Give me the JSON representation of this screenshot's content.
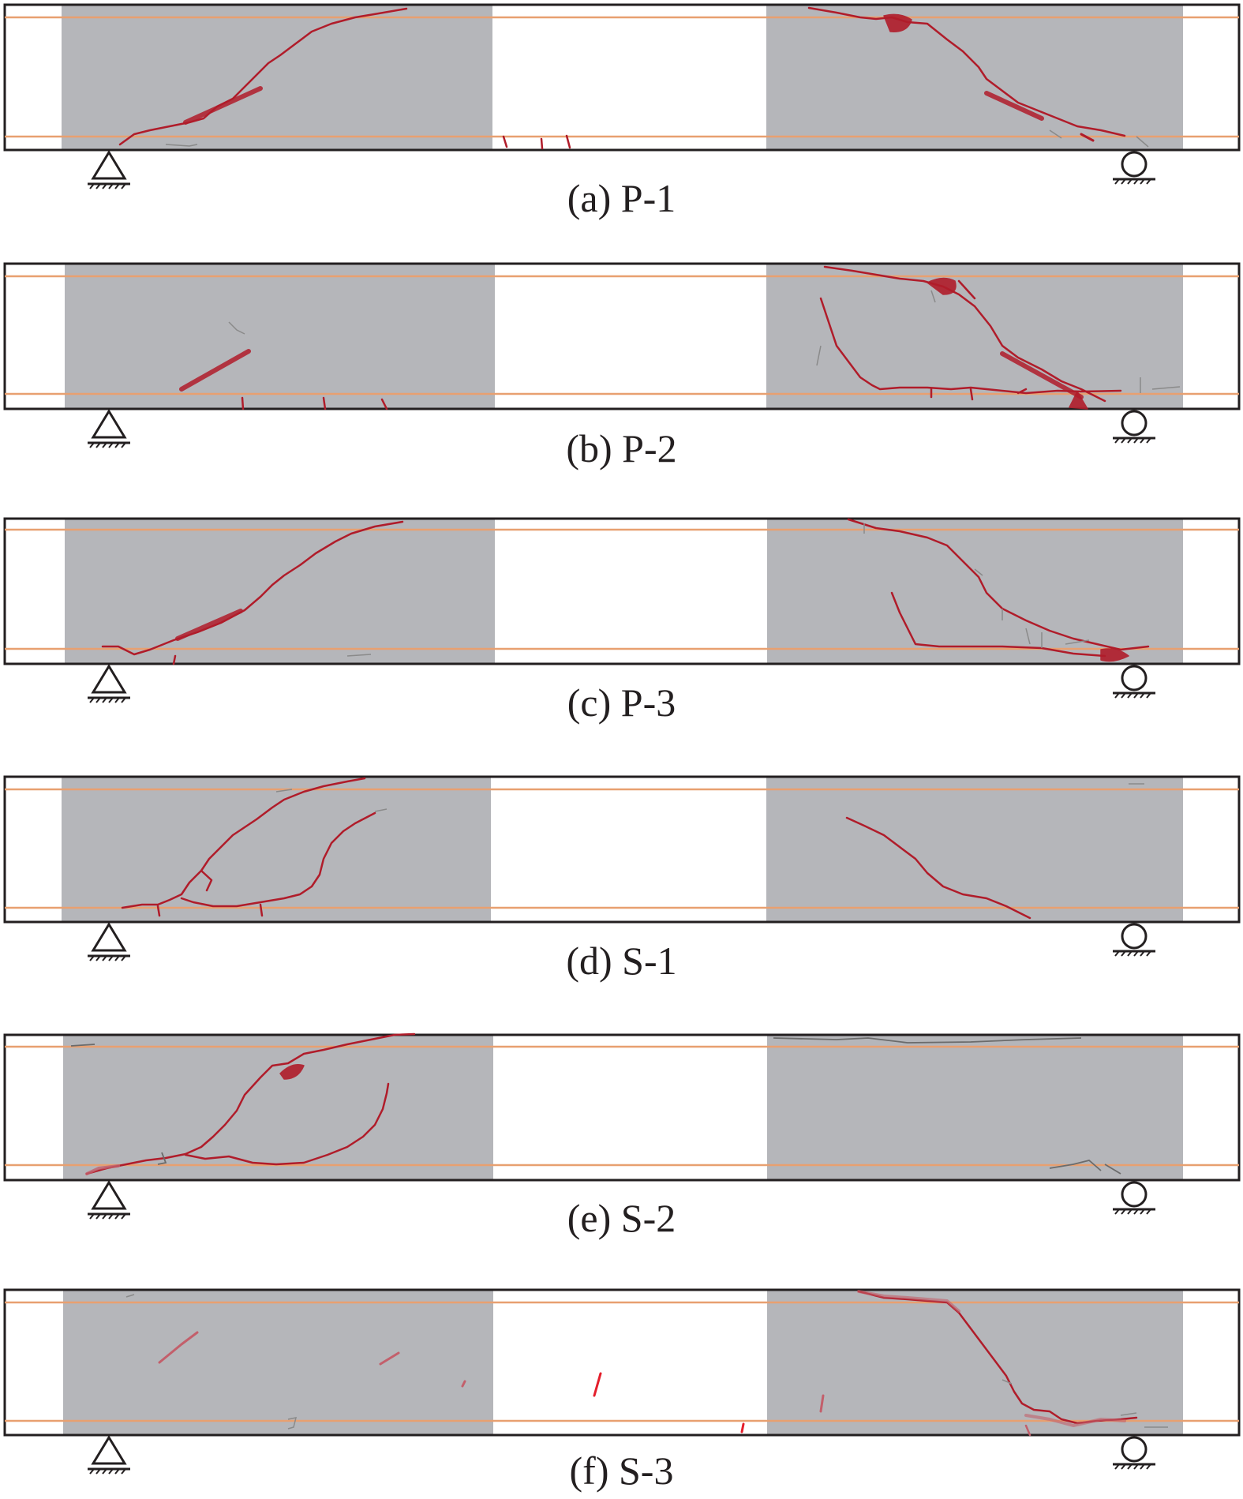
{
  "figure": {
    "colors": {
      "beam_outline": "#231f20",
      "shaded_region": "#b5b6ba",
      "reinforcement_line": "#e8a070",
      "crack": "#b01c2a",
      "minor_crack": "#8a8a8a"
    },
    "icons": {
      "pin_support": "triangle-pin-support-icon",
      "roller_support": "circle-roller-support-icon"
    },
    "panels": [
      {
        "id": "a",
        "caption": "(a) P-1"
      },
      {
        "id": "b",
        "caption": "(b) P-2"
      },
      {
        "id": "c",
        "caption": "(c) P-3"
      },
      {
        "id": "d",
        "caption": "(d) S-1"
      },
      {
        "id": "e",
        "caption": "(e) S-2"
      },
      {
        "id": "f",
        "caption": "(f) S-3"
      }
    ]
  }
}
